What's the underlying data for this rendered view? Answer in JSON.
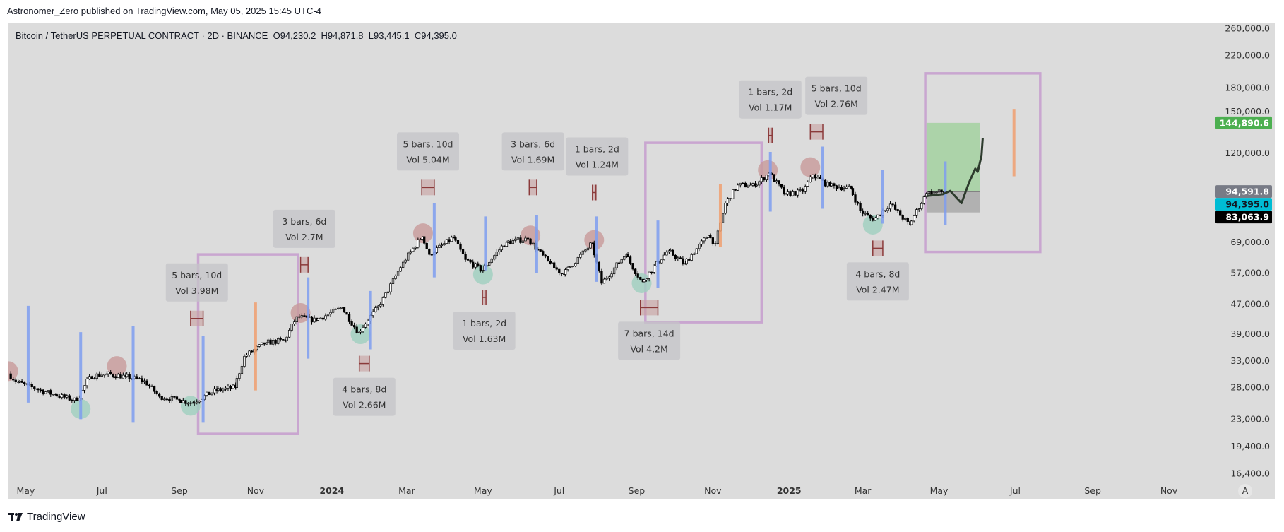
{
  "caption": "Astronomer_Zero published on TradingView.com, May 05, 2025 15:45 UTC-4",
  "legend": {
    "symbol": "Bitcoin / TetherUS PERPETUAL CONTRACT · 2D · BINANCE",
    "open": "O94,230.2",
    "high": "H94,871.8",
    "low": "L93,445.1",
    "close": "C94,395.0"
  },
  "footer": {
    "brand": "TradingView",
    "icon": "tradingview-logo-icon"
  },
  "colors": {
    "pane": "#dcdcdc",
    "up": "#ffffff",
    "down": "#000000",
    "blue_line": "#7f9ef0",
    "orange_line": "#f0a070",
    "rect": "#c9a6d0",
    "red_circle": "#c89a9a",
    "green_circle": "#9fcfbf",
    "marker": "#8b3a3a",
    "target_box": "#a3d1a0",
    "stop_box": "#a9a9a9"
  },
  "chart_data": {
    "type": "candlestick",
    "scale": "log",
    "ylim": [
      16400,
      260000
    ],
    "xlim": [
      "2023-04-14",
      "2025-12-20"
    ],
    "grid": false,
    "y_ticks": [
      "260,000.0",
      "220,000.0",
      "180,000.0",
      "150,000.0",
      "120,000.0",
      "69,000.0",
      "57,000.0",
      "47,000.0",
      "39,000.0",
      "33,000.0",
      "28,000.0",
      "23,000.0",
      "19,400.0",
      "16,400.0"
    ],
    "y_tick_values": [
      260000,
      220000,
      180000,
      150000,
      120000,
      69000,
      57000,
      47000,
      39000,
      33000,
      28000,
      23000,
      19400,
      16400
    ],
    "x_ticks": [
      {
        "label": "May",
        "date": "2023-05-01"
      },
      {
        "label": "Jul",
        "date": "2023-07-01"
      },
      {
        "label": "Sep",
        "date": "2023-09-01"
      },
      {
        "label": "Nov",
        "date": "2023-11-01"
      },
      {
        "label": "2024",
        "date": "2024-01-01",
        "bold": true
      },
      {
        "label": "Mar",
        "date": "2024-03-01"
      },
      {
        "label": "May",
        "date": "2024-05-01"
      },
      {
        "label": "Jul",
        "date": "2024-07-01"
      },
      {
        "label": "Sep",
        "date": "2024-09-01"
      },
      {
        "label": "Nov",
        "date": "2024-11-01"
      },
      {
        "label": "2025",
        "date": "2025-01-01",
        "bold": true
      },
      {
        "label": "Mar",
        "date": "2025-03-01"
      },
      {
        "label": "May",
        "date": "2025-05-01"
      },
      {
        "label": "Jul",
        "date": "2025-07-01"
      },
      {
        "label": "Sep",
        "date": "2025-09-01"
      },
      {
        "label": "Nov",
        "date": "2025-11-01"
      }
    ],
    "axis_auto_button": "A",
    "price_badges": [
      {
        "label": "144,890.6",
        "value": 144890.6,
        "bg": "#4caf50",
        "fg": "#ffffff"
      },
      {
        "label": "94,591.8",
        "value": 94591.8,
        "bg": "#787b86",
        "fg": "#ffffff"
      },
      {
        "label": "94,395.0",
        "value": 94395.0,
        "bg": "#00bcd4",
        "fg": "#131722"
      },
      {
        "label": "83,063.9",
        "value": 83063.9,
        "bg": "#000000",
        "fg": "#ffffff"
      }
    ],
    "closes": [
      [
        "2023-04-18",
        30500
      ],
      [
        "2023-04-25",
        29000
      ],
      [
        "2023-05-10",
        27800
      ],
      [
        "2023-05-25",
        26800
      ],
      [
        "2023-06-12",
        25800
      ],
      [
        "2023-06-22",
        30000
      ],
      [
        "2023-07-05",
        30500
      ],
      [
        "2023-07-20",
        30000
      ],
      [
        "2023-08-05",
        29200
      ],
      [
        "2023-08-17",
        26500
      ],
      [
        "2023-09-01",
        25900
      ],
      [
        "2023-09-12",
        25500
      ],
      [
        "2023-10-01",
        27500
      ],
      [
        "2023-10-16",
        28000
      ],
      [
        "2023-10-24",
        34000
      ],
      [
        "2023-11-10",
        37000
      ],
      [
        "2023-11-25",
        37500
      ],
      [
        "2023-12-05",
        43500
      ],
      [
        "2023-12-20",
        42500
      ],
      [
        "2024-01-10",
        46000
      ],
      [
        "2024-01-23",
        39500
      ],
      [
        "2024-02-10",
        47000
      ],
      [
        "2024-02-28",
        61000
      ],
      [
        "2024-03-14",
        71500
      ],
      [
        "2024-03-20",
        64000
      ],
      [
        "2024-04-08",
        71000
      ],
      [
        "2024-04-18",
        62000
      ],
      [
        "2024-05-01",
        58000
      ],
      [
        "2024-05-20",
        69000
      ],
      [
        "2024-06-07",
        70500
      ],
      [
        "2024-06-24",
        60500
      ],
      [
        "2024-07-05",
        56500
      ],
      [
        "2024-07-28",
        68500
      ],
      [
        "2024-08-05",
        53500
      ],
      [
        "2024-08-24",
        64000
      ],
      [
        "2024-09-06",
        54000
      ],
      [
        "2024-09-27",
        65500
      ],
      [
        "2024-10-10",
        60500
      ],
      [
        "2024-10-29",
        72000
      ],
      [
        "2024-11-04",
        68500
      ],
      [
        "2024-11-12",
        88000
      ],
      [
        "2024-11-22",
        98500
      ],
      [
        "2024-12-05",
        98000
      ],
      [
        "2024-12-17",
        106000
      ],
      [
        "2024-12-30",
        93000
      ],
      [
        "2025-01-13",
        94500
      ],
      [
        "2025-01-21",
        105000
      ],
      [
        "2025-02-03",
        98000
      ],
      [
        "2025-02-20",
        96500
      ],
      [
        "2025-02-28",
        84000
      ],
      [
        "2025-03-10",
        79000
      ],
      [
        "2025-03-24",
        87500
      ],
      [
        "2025-04-08",
        77000
      ],
      [
        "2025-04-22",
        93500
      ],
      [
        "2025-05-05",
        94395
      ]
    ],
    "vertical_lines_blue": [
      [
        "2023-05-03",
        46500,
        25500
      ],
      [
        "2023-06-14",
        39500,
        23000
      ],
      [
        "2023-07-26",
        41000,
        22500
      ],
      [
        "2023-09-20",
        38500,
        22500
      ],
      [
        "2023-12-13",
        55500,
        33500
      ],
      [
        "2024-02-01",
        51000,
        35500
      ],
      [
        "2024-03-23",
        88000,
        55500
      ],
      [
        "2024-05-03",
        81000,
        58000
      ],
      [
        "2024-06-13",
        81500,
        57000
      ],
      [
        "2024-07-31",
        81000,
        54000
      ],
      [
        "2024-09-18",
        79000,
        52000
      ],
      [
        "2024-12-17",
        121000,
        83500
      ],
      [
        "2025-01-28",
        125000,
        85000
      ],
      [
        "2025-03-17",
        108000,
        77500
      ],
      [
        "2025-05-06",
        114000,
        77000
      ]
    ],
    "vertical_lines_orange": [
      [
        "2023-11-01",
        47500,
        27500
      ],
      [
        "2024-11-07",
        99000,
        67000
      ],
      [
        "2025-06-30",
        158000,
        104000
      ]
    ],
    "circles_red": [
      [
        "2023-04-17",
        31000
      ],
      [
        "2023-07-13",
        32000
      ],
      [
        "2023-12-07",
        44500
      ],
      [
        "2024-03-14",
        73000
      ],
      [
        "2024-06-08",
        72000
      ],
      [
        "2024-07-29",
        70000
      ],
      [
        "2024-12-15",
        108000
      ],
      [
        "2025-01-18",
        110000
      ]
    ],
    "circles_green": [
      [
        "2023-06-14",
        24500
      ],
      [
        "2023-09-10",
        25000
      ],
      [
        "2024-01-24",
        39000
      ],
      [
        "2024-05-01",
        56500
      ],
      [
        "2024-09-05",
        53500
      ],
      [
        "2025-03-09",
        77000
      ]
    ],
    "range_markers": [
      {
        "date": "2023-09-15",
        "price": 43000,
        "days": 10,
        "label1": "5 bars, 10d",
        "label2": "Vol 3.98M",
        "pos": "above"
      },
      {
        "date": "2023-12-10",
        "price": 60000,
        "days": 6,
        "label1": "3 bars, 6d",
        "label2": "Vol 2.7M",
        "pos": "above"
      },
      {
        "date": "2024-01-27",
        "price": 32500,
        "days": 8,
        "label1": "4 bars, 8d",
        "label2": "Vol 2.66M",
        "pos": "below"
      },
      {
        "date": "2024-03-18",
        "price": 97000,
        "days": 10,
        "label1": "5 bars, 10d",
        "label2": "Vol 5.04M",
        "pos": "above"
      },
      {
        "date": "2024-05-02",
        "price": 49000,
        "days": 2,
        "label1": "1 bars, 2d",
        "label2": "Vol 1.63M",
        "pos": "below"
      },
      {
        "date": "2024-06-10",
        "price": 97000,
        "days": 6,
        "label1": "3 bars, 6d",
        "label2": "Vol 1.69M",
        "pos": "above"
      },
      {
        "date": "2024-07-29",
        "price": 94000,
        "days": 2,
        "label1": "1 bars, 2d",
        "label2": "Vol 1.24M",
        "pos": "above"
      },
      {
        "date": "2024-09-11",
        "price": 46000,
        "days": 14,
        "label1": "7 bars, 14d",
        "label2": "Vol 4.2M",
        "pos": "below"
      },
      {
        "date": "2024-12-17",
        "price": 134000,
        "days": 2,
        "label1": "1 bars, 2d",
        "label2": "Vol 1.17M",
        "pos": "above"
      },
      {
        "date": "2025-01-23",
        "price": 137000,
        "days": 10,
        "label1": "5 bars, 10d",
        "label2": "Vol 2.76M",
        "pos": "above"
      },
      {
        "date": "2025-03-13",
        "price": 66500,
        "days": 8,
        "label1": "4 bars, 8d",
        "label2": "Vol 2.47M",
        "pos": "below"
      }
    ],
    "rectangles": [
      [
        "2023-09-16",
        "2023-12-05",
        64000,
        21000
      ],
      [
        "2024-09-08",
        "2024-12-10",
        128000,
        42000
      ],
      [
        "2025-04-20",
        "2025-07-21",
        197000,
        65000
      ]
    ],
    "position": {
      "start": "2025-04-21",
      "end": "2025-06-03",
      "entry": 94591.8,
      "target": 144890.6,
      "stop": 83063.9
    },
    "projection": [
      [
        "2025-04-21",
        92000
      ],
      [
        "2025-05-04",
        93000
      ],
      [
        "2025-05-10",
        95000
      ],
      [
        "2025-05-15",
        91000
      ],
      [
        "2025-05-19",
        88000
      ],
      [
        "2025-05-25",
        100000
      ],
      [
        "2025-05-30",
        109000
      ],
      [
        "2025-06-01",
        107000
      ],
      [
        "2025-06-04",
        118000
      ],
      [
        "2025-06-05",
        132000
      ]
    ]
  }
}
